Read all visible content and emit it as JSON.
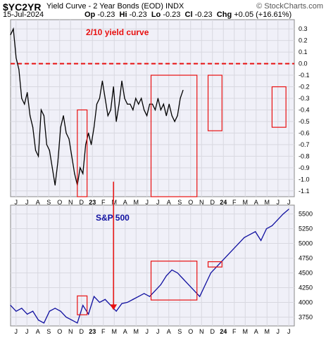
{
  "header": {
    "symbol": "$YC2YR",
    "title": "Yield Curve - 2 Year Bonds (EOD)",
    "exchange": "INDX",
    "date": "15-Jul-2024",
    "ohlc": {
      "open_label": "Op",
      "open": "-0.23",
      "high_label": "Hi",
      "high": "-0.23",
      "low_label": "Lo",
      "low": "-0.23",
      "close_label": "Cl",
      "close": "-0.23",
      "chg_label": "Chg",
      "chg": "+0.05 (+16.61%)"
    },
    "watermark": "© StockCharts.com"
  },
  "colors": {
    "line": "#000000",
    "sp_line": "#1010a0",
    "annotation": "#e81010",
    "dash": "#e81010",
    "panel_bg": "#f0f0f8",
    "grid": "#d8d8e0"
  },
  "x_axis_labels": [
    "J",
    "J",
    "A",
    "S",
    "O",
    "N",
    "D",
    "23",
    "F",
    "M",
    "A",
    "M",
    "J",
    "J",
    "A",
    "S",
    "O",
    "N",
    "D",
    "24",
    "F",
    "M",
    "A",
    "M",
    "J",
    "J"
  ],
  "chart_data": [
    {
      "type": "line",
      "title": "2/10 yield curve",
      "ylim": [
        -1.15,
        0.38
      ],
      "yticks": [
        0.3,
        0.2,
        0.1,
        0.0,
        -0.1,
        -0.2,
        -0.3,
        -0.4,
        -0.5,
        -0.6,
        -0.7,
        -0.8,
        -0.9,
        -1.0,
        -1.1
      ],
      "ytick_labels": [
        "0.3",
        "0.2",
        "0.1",
        "0.0",
        "-0.1",
        "-0.2",
        "-0.3",
        "-0.4",
        "-0.5",
        "-0.6",
        "-0.7",
        "-0.8",
        "-0.9",
        "-1.0",
        "-1.1"
      ],
      "reference_line": 0.0,
      "x": [
        0,
        2,
        4,
        6,
        8,
        10,
        12,
        14,
        16,
        18,
        20,
        22,
        24,
        26,
        28,
        30,
        32,
        34,
        36,
        38,
        40,
        42,
        44,
        46,
        48,
        50,
        52,
        54,
        56,
        58,
        60,
        62,
        64,
        66,
        68,
        70,
        72,
        74,
        76,
        78,
        80,
        82,
        84,
        86,
        88,
        90,
        92,
        94,
        96,
        98,
        100,
        102,
        104,
        106,
        108,
        110,
        112,
        114,
        116,
        118,
        120,
        122,
        124
      ],
      "values": [
        0.25,
        0.3,
        0.05,
        -0.05,
        -0.3,
        -0.35,
        -0.25,
        -0.45,
        -0.55,
        -0.75,
        -0.8,
        -0.4,
        -0.45,
        -0.7,
        -0.75,
        -0.9,
        -1.05,
        -0.85,
        -0.55,
        -0.45,
        -0.6,
        -0.65,
        -0.8,
        -0.95,
        -1.05,
        -0.9,
        -0.95,
        -0.7,
        -0.6,
        -0.7,
        -0.55,
        -0.35,
        -0.3,
        -0.15,
        -0.3,
        -0.45,
        -0.4,
        -0.2,
        -0.5,
        -0.35,
        -0.15,
        -0.3,
        -0.35,
        -0.35,
        -0.4,
        -0.3,
        -0.35,
        -0.3,
        -0.4,
        -0.45,
        -0.35,
        -0.35,
        -0.4,
        -0.3,
        -0.4,
        -0.35,
        -0.45,
        -0.35,
        -0.45,
        -0.5,
        -0.45,
        -0.3,
        -0.23
      ],
      "boxes": [
        {
          "x0": 48,
          "x1": 55,
          "y0": -1.15,
          "y1": -0.4
        },
        {
          "x0": 101,
          "x1": 134,
          "y0": -1.15,
          "y1": -0.1
        },
        {
          "x0": 142,
          "x1": 152,
          "y0": -0.58,
          "y1": -0.1
        },
        {
          "x0": 188,
          "x1": 198,
          "y0": -0.55,
          "y1": -0.2
        }
      ]
    },
    {
      "type": "line",
      "title": "S&P 500",
      "ylim": [
        3600,
        5650
      ],
      "yticks": [
        5500,
        5250,
        5000,
        4750,
        4500,
        4250,
        4000,
        3750
      ],
      "ytick_labels": [
        "5500",
        "5250",
        "5000",
        "4750",
        "4500",
        "4250",
        "4000",
        "3750"
      ],
      "x": [
        0,
        4,
        8,
        12,
        16,
        20,
        24,
        28,
        32,
        36,
        40,
        44,
        48,
        52,
        56,
        60,
        64,
        68,
        72,
        76,
        80,
        84,
        88,
        92,
        96,
        100,
        104,
        108,
        112,
        116,
        120,
        124,
        128,
        132,
        136,
        140,
        144,
        148,
        152,
        156,
        160,
        164,
        168,
        172,
        176,
        180,
        184,
        188,
        192,
        196,
        200
      ],
      "values": [
        3950,
        3850,
        3900,
        3800,
        3850,
        3700,
        3650,
        3850,
        3900,
        3850,
        3750,
        3700,
        3650,
        3950,
        3800,
        4100,
        4000,
        4050,
        3950,
        3850,
        3980,
        4000,
        4050,
        4100,
        4150,
        4100,
        4200,
        4300,
        4450,
        4550,
        4500,
        4400,
        4300,
        4200,
        4100,
        4300,
        4500,
        4600,
        4700,
        4800,
        4900,
        5000,
        5100,
        5150,
        5200,
        5050,
        5250,
        5300,
        5400,
        5500,
        5580
      ],
      "boxes": [
        {
          "x0": 48,
          "x1": 55,
          "y0": 3790,
          "y1": 4110
        },
        {
          "x0": 101,
          "x1": 134,
          "y0": 4040,
          "y1": 4700
        },
        {
          "x0": 142,
          "x1": 152,
          "y0": 4600,
          "y1": 4690
        }
      ],
      "arrow": {
        "x_from": 74,
        "y_from": -1.02,
        "x_to": 74,
        "y_to": 3870
      }
    }
  ]
}
